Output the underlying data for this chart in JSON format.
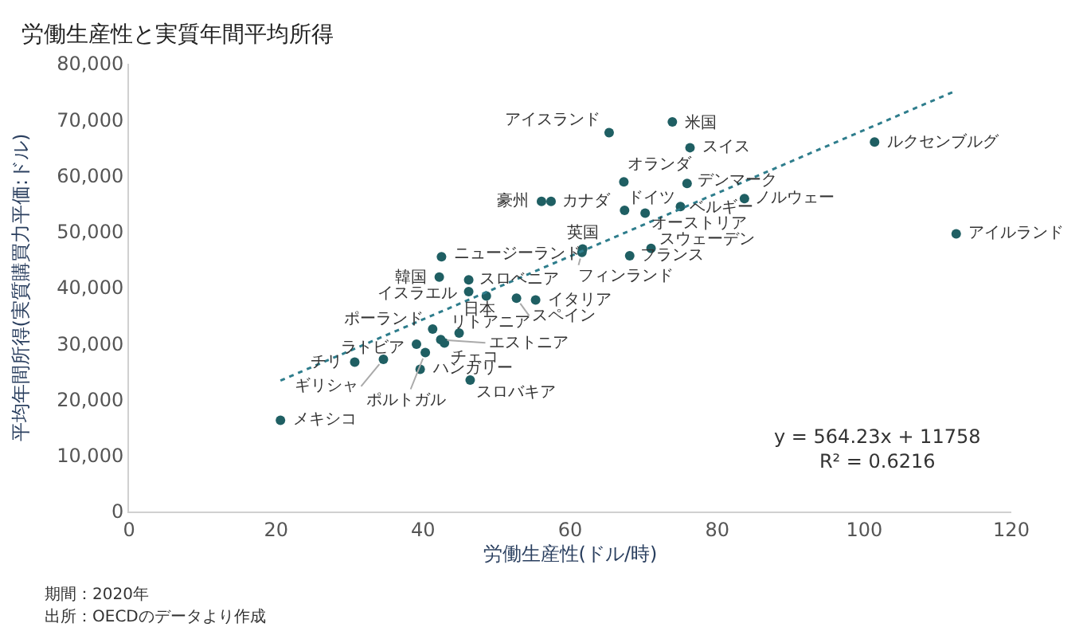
{
  "chart_data": {
    "type": "scatter",
    "title": "労働生産性と実質年間平均所得",
    "xlabel": "労働生産性(ドル/時)",
    "ylabel": "平均年間所得(実質購買力平価:ドル)",
    "x": [
      20.6,
      30.7,
      34.6,
      39.6,
      46.4,
      40.3,
      39.1,
      42.4,
      42.9,
      41.3,
      44.9,
      48.6,
      46.2,
      46.2,
      42.2,
      42.5,
      52.7,
      55.3,
      61.7,
      61.6,
      68.1,
      71.0,
      56.1,
      57.4,
      67.4,
      67.3,
      70.2,
      75.0,
      75.9,
      83.7,
      76.3,
      65.3,
      73.9,
      101.4,
      112.5
    ],
    "series": [
      {
        "color": "#1f5f63",
        "values": [
          16300,
          26700,
          27200,
          25400,
          23500,
          28400,
          29900,
          30700,
          30100,
          32600,
          31900,
          38500,
          39300,
          41400,
          41900,
          45500,
          38100,
          37800,
          46900,
          46300,
          45700,
          47000,
          55400,
          55400,
          53800,
          58900,
          53300,
          54500,
          58600,
          55900,
          65000,
          67700,
          69600,
          66000,
          49600
        ],
        "value_labels": [
          "メキシコ",
          "チリ",
          "ギリシャ",
          "ハンガリー",
          "スロバキア",
          "ポルトガル",
          "ラトビア",
          "エストニア",
          "チェコ",
          "ポーランド",
          "リトアニア",
          "日本",
          "イスラエル",
          "スロベニア",
          "韓国",
          "ニュージーランド",
          "スペイン",
          "イタリア",
          "英国",
          "フィンランド",
          "フランス",
          "スウェーデン",
          "豪州",
          "カナダ",
          "ドイツ",
          "オランダ",
          "オーストリア",
          "ベルギー",
          "デンマーク",
          "ノルウェー",
          "スイス",
          "アイスランド",
          "米国",
          "ルクセンブルグ",
          "アイルランド"
        ]
      },
      {
        "type": "line",
        "x": [
          20.6,
          112.5
        ],
        "color": "#2e7d8c",
        "line_style": "dotted",
        "marker": "none",
        "values": [
          23400,
          75200
        ]
      }
    ],
    "xlim": [
      0,
      120
    ],
    "xticks": [
      0,
      20,
      40,
      60,
      80,
      100,
      120
    ],
    "ylim": [
      0,
      80000
    ],
    "yticks": [
      {
        "value": 0,
        "label": "0"
      },
      {
        "value": 10000,
        "label": "10,000"
      },
      {
        "value": 20000,
        "label": "20,000"
      },
      {
        "value": 30000,
        "label": "30,000"
      },
      {
        "value": 40000,
        "label": "40,000"
      },
      {
        "value": 50000,
        "label": "50,000"
      },
      {
        "value": 60000,
        "label": "60,000"
      },
      {
        "value": 70000,
        "label": "70,000"
      },
      {
        "value": 80000,
        "label": "80,000"
      }
    ],
    "legend": false,
    "marker": "circle",
    "annotations": [
      "y = 564.23x + 11758\nR² = 0.6216",
      "期間：2020年",
      "出所：OECDのデータより作成"
    ]
  }
}
